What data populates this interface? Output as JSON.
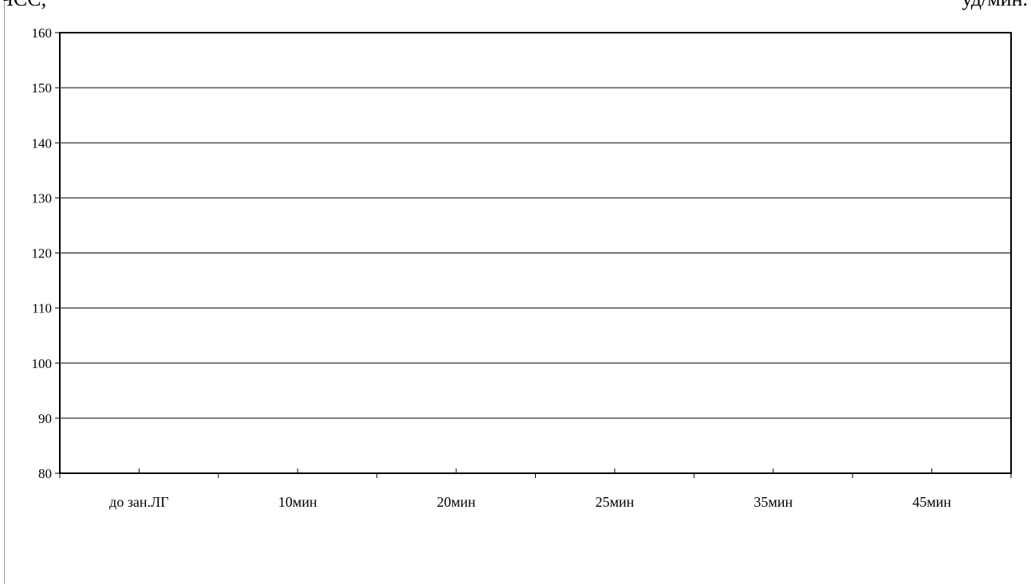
{
  "header": {
    "left_label": "ЧСС,",
    "right_label": "уд/мин."
  },
  "chart_data": {
    "type": "line",
    "categories": [
      "до зан.ЛГ",
      "10мин",
      "20мин",
      "25мин",
      "35мин",
      "45мин"
    ],
    "series": [],
    "title": "",
    "xlabel": "",
    "ylabel": "",
    "ylim": [
      80,
      160
    ],
    "yticks": [
      80,
      90,
      100,
      110,
      120,
      130,
      140,
      150,
      160
    ],
    "ytick_labels": [
      "80",
      "90",
      "100",
      "110",
      "120",
      "130",
      "140",
      "150",
      "160"
    ],
    "grid": true,
    "legend": "none"
  }
}
